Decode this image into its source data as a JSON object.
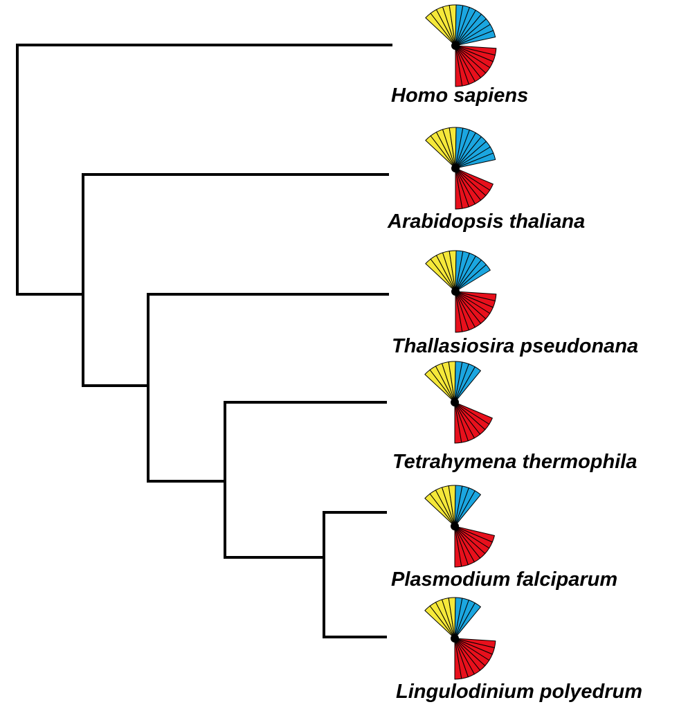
{
  "colors": {
    "branch": "#000000",
    "segment_a": "#E8101C",
    "segment_b": "#F5E83A",
    "segment_c": "#1BA6E0"
  },
  "taxa": [
    {
      "name": "Homo sapiens",
      "red_sectors": 9,
      "yellow_sectors": 5,
      "blue_sectors": 8
    },
    {
      "name": "Arabidopsis thaliana",
      "red_sectors": 7,
      "yellow_sectors": 5,
      "blue_sectors": 8
    },
    {
      "name": "Thallasiosira pseudonana",
      "red_sectors": 9,
      "yellow_sectors": 5,
      "blue_sectors": 6
    },
    {
      "name": "Tetrahymena thermophila",
      "red_sectors": 7,
      "yellow_sectors": 5,
      "blue_sectors": 4
    },
    {
      "name": "Plasmodium falciparum",
      "red_sectors": 8,
      "yellow_sectors": 5,
      "blue_sectors": 4
    },
    {
      "name": "Lingulodinium polyedrum",
      "red_sectors": 9,
      "yellow_sectors": 5,
      "blue_sectors": 4
    }
  ]
}
